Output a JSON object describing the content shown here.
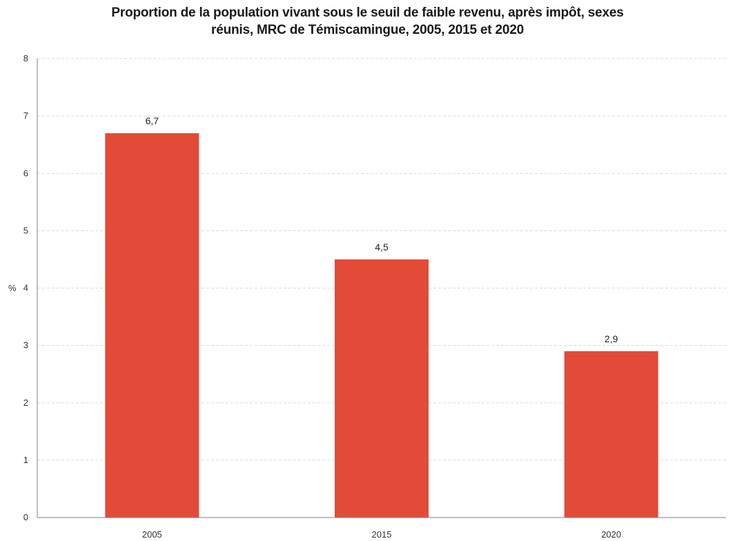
{
  "chart_data": {
    "type": "bar",
    "title_lines": [
      "Proportion de la population vivant sous le seuil de faible revenu, après impôt, sexes",
      "réunis, MRC de Témiscamingue, 2005, 2015 et 2020"
    ],
    "categories": [
      "2005",
      "2015",
      "2020"
    ],
    "values": [
      6.7,
      4.5,
      2.9
    ],
    "value_labels": [
      "6,7",
      "4,5",
      "2,9"
    ],
    "xlabel": "",
    "ylabel": "%",
    "ylim": [
      0,
      8
    ],
    "yticks": [
      0,
      1,
      2,
      3,
      4,
      5,
      6,
      7,
      8
    ],
    "grid": true,
    "legend": "none",
    "colors": {
      "bar": "#e34b38",
      "grid": "#d9d9d9",
      "axis": "#7f7f7f"
    }
  }
}
